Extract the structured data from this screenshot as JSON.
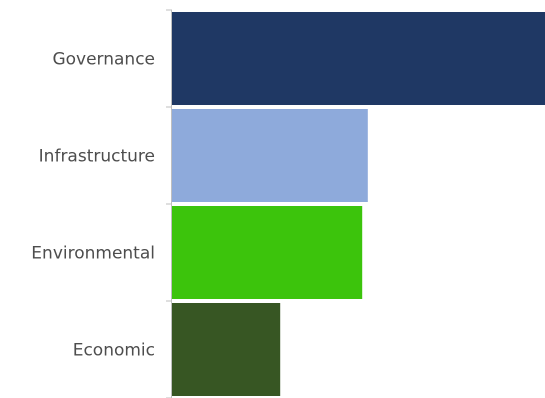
{
  "chart_data": {
    "type": "bar",
    "orientation": "horizontal",
    "title": "",
    "xlabel": "",
    "ylabel": "",
    "categories": [
      "Governance",
      "Infrastructure",
      "Environmental",
      "Economic"
    ],
    "values": [
      100,
      52.5,
      51,
      29
    ],
    "colors": [
      "#1f3864",
      "#8eaadb",
      "#3cc40c",
      "#375623"
    ],
    "grid": false,
    "legend": "none"
  }
}
